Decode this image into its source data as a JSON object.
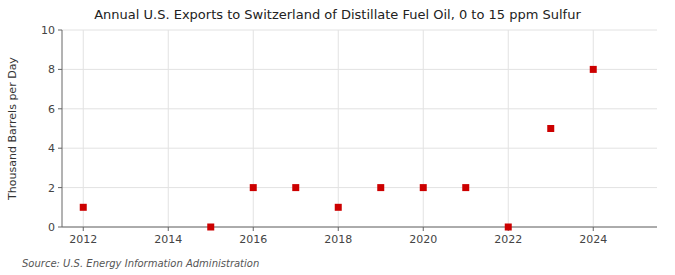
{
  "chart_data": {
    "type": "scatter",
    "title": "Annual U.S. Exports to Switzerland of Distillate Fuel Oil, 0 to 15 ppm Sulfur",
    "ylabel": "Thousand Barrels per Day",
    "source": "Source: U.S. Energy Information Administration",
    "x": [
      2012,
      2015,
      2016,
      2017,
      2018,
      2019,
      2020,
      2021,
      2022,
      2023,
      2024
    ],
    "values": [
      1,
      0,
      2,
      2,
      1,
      2,
      2,
      2,
      0,
      5,
      8
    ],
    "xlim": [
      2011.5,
      2025.5
    ],
    "ylim": [
      0,
      10
    ],
    "xticks": [
      2012,
      2014,
      2016,
      2018,
      2020,
      2022,
      2024
    ],
    "yticks": [
      0,
      2,
      4,
      6,
      8,
      10
    ],
    "color": "#cc0000",
    "marker": "square",
    "grid": true
  }
}
